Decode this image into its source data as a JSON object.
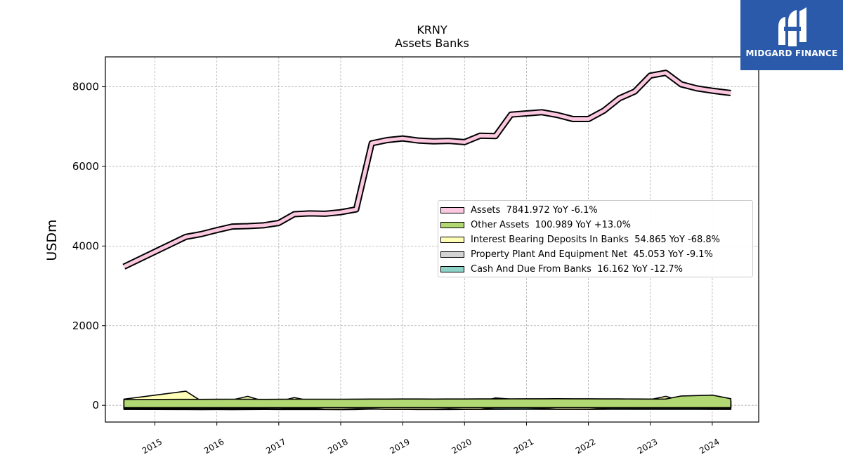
{
  "logo": {
    "text": "MIDGARD FINANCE",
    "icon": "midgard-finance-logo-icon"
  },
  "chart_data": {
    "type": "area",
    "title": "KRNY",
    "subtitle": "Assets Banks",
    "xlabel": "",
    "ylabel": "USDm",
    "xlim": [
      2014.2,
      2024.75
    ],
    "ylim": [
      -420,
      8750
    ],
    "yticks": [
      0,
      2000,
      4000,
      6000,
      8000
    ],
    "xticks": [
      2015,
      2016,
      2017,
      2018,
      2019,
      2020,
      2021,
      2022,
      2023,
      2024
    ],
    "grid": true,
    "legend_position": "center-right",
    "x": [
      2014.5,
      2015.5,
      2015.75,
      2016.0,
      2016.25,
      2016.5,
      2016.75,
      2017.0,
      2017.25,
      2017.5,
      2017.75,
      2018.0,
      2018.25,
      2018.5,
      2018.75,
      2019.0,
      2019.25,
      2019.5,
      2019.75,
      2020.0,
      2020.25,
      2020.5,
      2020.75,
      2021.0,
      2021.25,
      2021.5,
      2021.75,
      2022.0,
      2022.25,
      2022.5,
      2022.75,
      2023.0,
      2023.25,
      2023.5,
      2023.75,
      2024.0,
      2024.3
    ],
    "series": [
      {
        "name": "Assets",
        "legend": "Assets  7841.972 YoY -6.1%",
        "color": "#fbc8e0",
        "values": [
          3480,
          4230,
          4300,
          4400,
          4490,
          4500,
          4520,
          4580,
          4800,
          4820,
          4810,
          4850,
          4920,
          6580,
          6660,
          6700,
          6650,
          6630,
          6640,
          6610,
          6770,
          6760,
          7300,
          7330,
          7360,
          7290,
          7190,
          7190,
          7400,
          7710,
          7880,
          8280,
          8350,
          8060,
          7960,
          7900,
          7842
        ]
      },
      {
        "name": "Other Assets",
        "legend": "Other Assets  100.989 YoY +13.0%",
        "color": "#b2d873",
        "values": [
          80,
          85,
          84,
          86,
          88,
          87,
          85,
          86,
          88,
          89,
          88,
          89,
          90,
          92,
          92,
          93,
          93,
          92,
          93,
          94,
          95,
          96,
          97,
          98,
          99,
          100,
          99,
          98,
          96,
          95,
          94,
          92,
          93,
          170,
          180,
          190,
          101
        ]
      },
      {
        "name": "Interest Bearing Deposits In Banks",
        "legend": "Interest Bearing Deposits In Banks  54.865 YoY -68.8%",
        "color": "#ffffb8",
        "values": [
          90,
          290,
          40,
          60,
          70,
          160,
          40,
          30,
          130,
          50,
          20,
          20,
          30,
          30,
          20,
          20,
          20,
          20,
          30,
          20,
          20,
          120,
          90,
          70,
          40,
          20,
          20,
          20,
          40,
          60,
          80,
          80,
          160,
          50,
          60,
          55,
          55
        ]
      },
      {
        "name": "Property Plant And Equipment Net",
        "legend": "Property Plant And Equipment Net  45.053 YoY -9.1%",
        "color": "#d4d4d4",
        "values": [
          40,
          38,
          38,
          37,
          37,
          36,
          36,
          36,
          38,
          39,
          40,
          40,
          41,
          62,
          62,
          60,
          60,
          58,
          57,
          56,
          55,
          54,
          53,
          52,
          51,
          50,
          50,
          50,
          49,
          49,
          48,
          48,
          48,
          47,
          47,
          46,
          45
        ]
      },
      {
        "name": "Cash And Due From Banks",
        "legend": "Cash And Due From Banks  16.162 YoY -12.7%",
        "color": "#8dd3c7",
        "values": [
          15,
          12,
          10,
          12,
          10,
          12,
          14,
          12,
          13,
          12,
          12,
          11,
          12,
          25,
          18,
          15,
          12,
          12,
          12,
          14,
          15,
          16,
          18,
          18,
          18,
          18,
          18,
          16,
          17,
          17,
          17,
          18,
          18,
          17,
          17,
          16,
          16
        ]
      }
    ]
  }
}
